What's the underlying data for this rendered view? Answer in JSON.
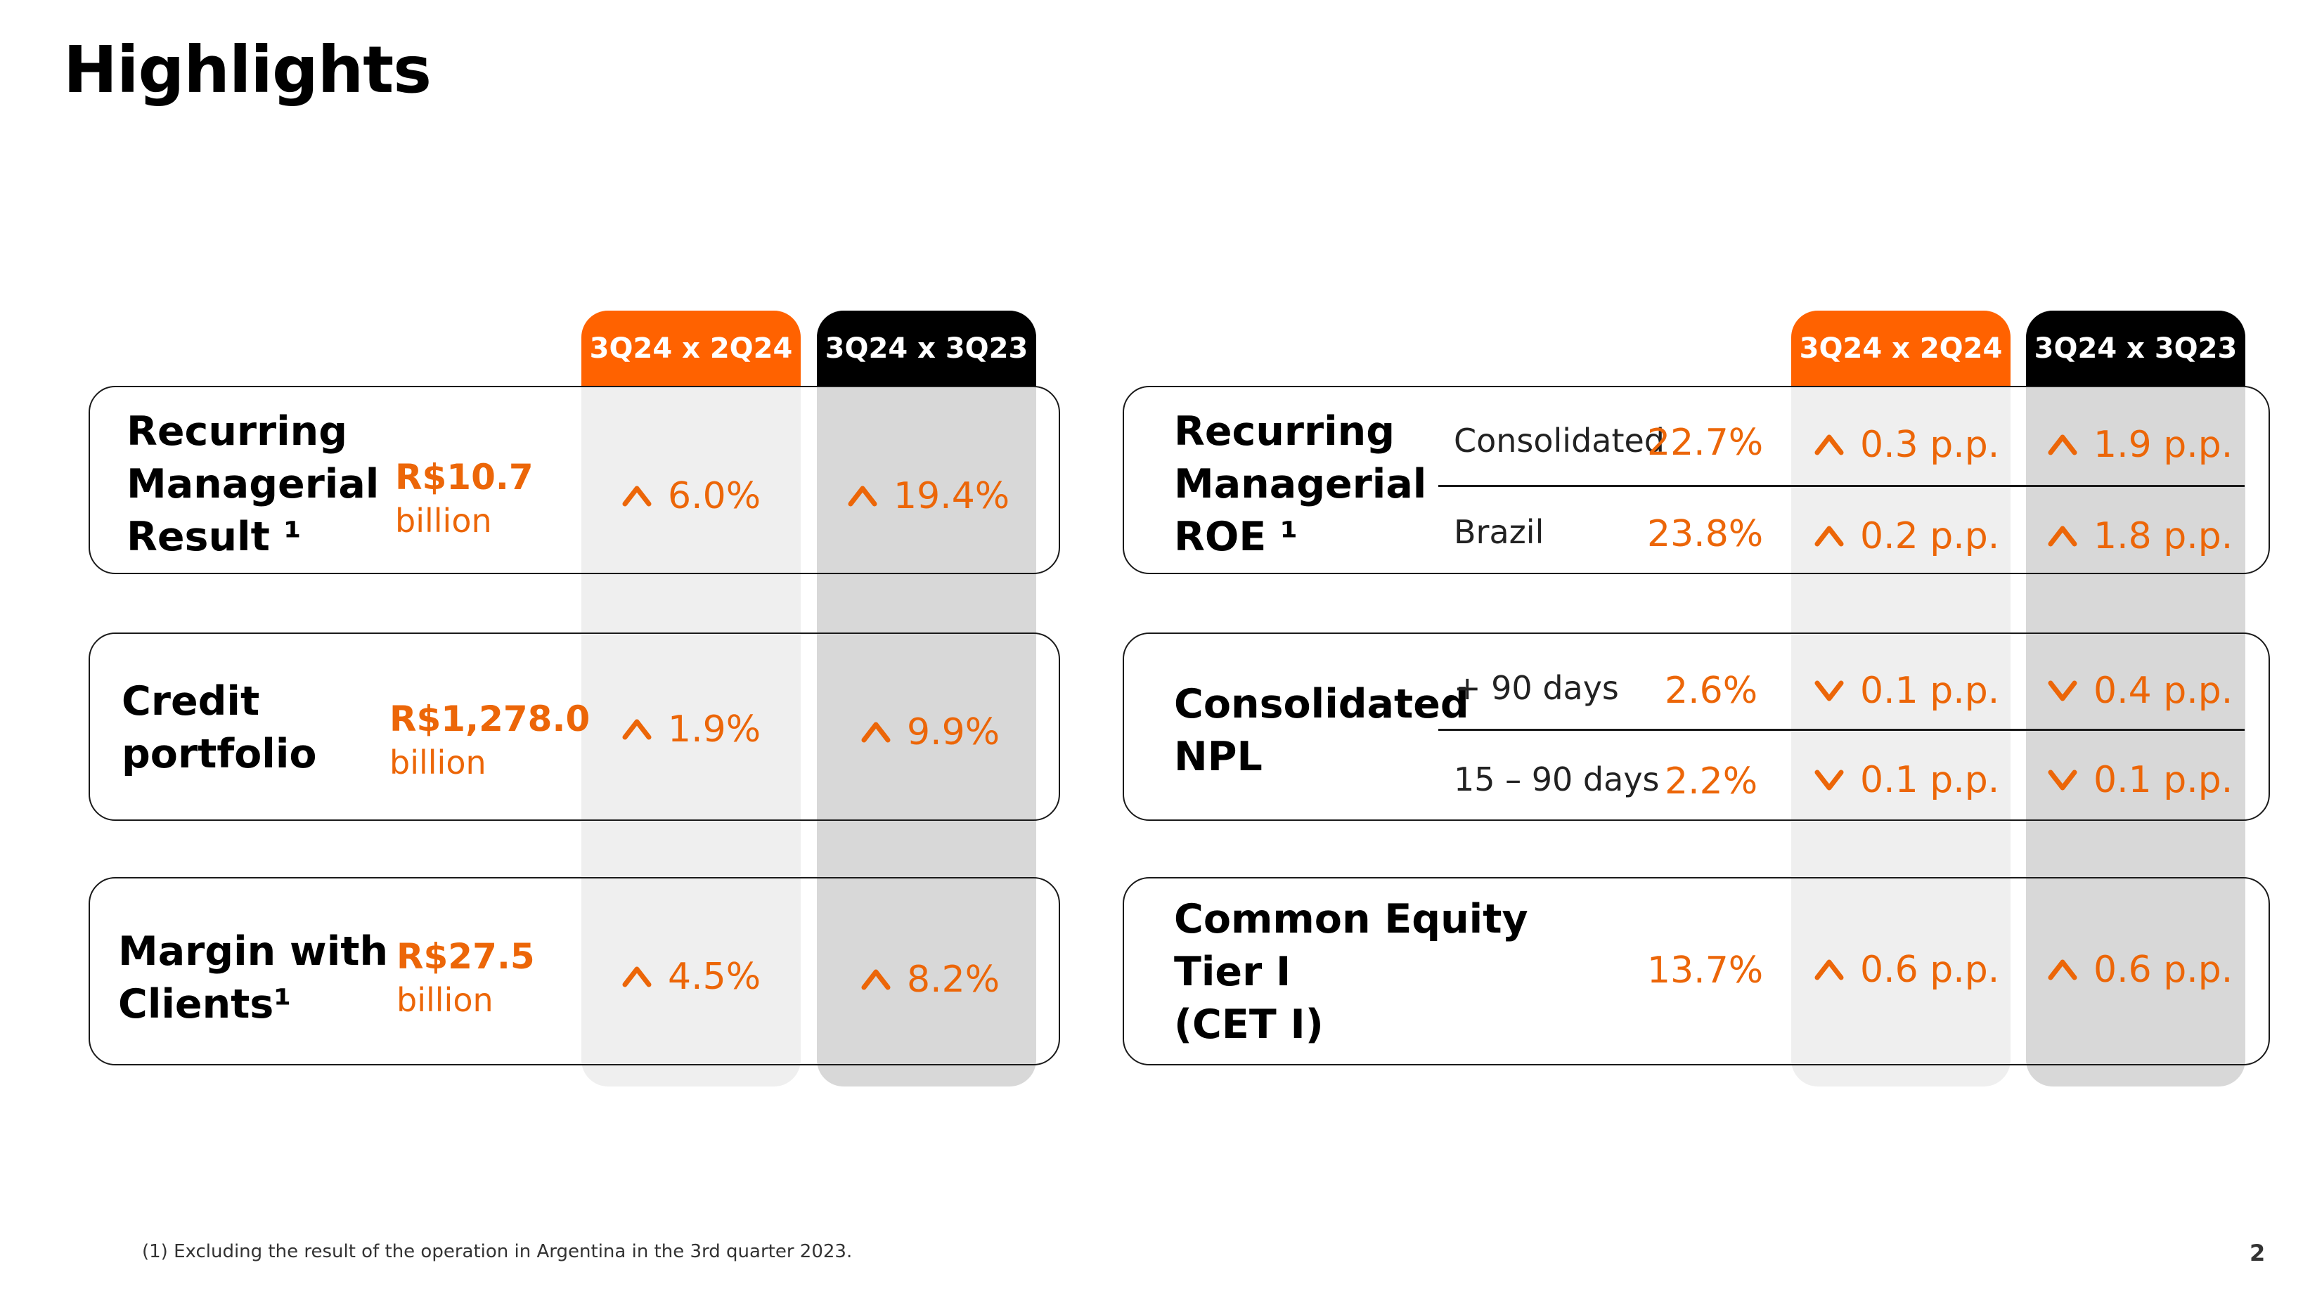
{
  "title": "Highlights",
  "headers": {
    "qoq": "3Q24 x 2Q24",
    "yoy": "3Q24 x 3Q23"
  },
  "left_rows": [
    {
      "label_lines": [
        "Recurring",
        "Managerial",
        "Result ¹"
      ],
      "amount": "R$10.7",
      "unit": "billion",
      "qoq": "6.0%",
      "qoq_dir": "up",
      "yoy": "19.4%",
      "yoy_dir": "up"
    },
    {
      "label_lines": [
        "Credit",
        "portfolio"
      ],
      "amount": "R$1,278.0",
      "unit": "billion",
      "qoq": "1.9%",
      "qoq_dir": "up",
      "yoy": "9.9%",
      "yoy_dir": "up"
    },
    {
      "label_lines": [
        "Margin with",
        "Clients¹"
      ],
      "amount": "R$27.5",
      "unit": "billion",
      "qoq": "4.5%",
      "qoq_dir": "up",
      "yoy": "8.2%",
      "yoy_dir": "up"
    }
  ],
  "roe": {
    "label_lines": [
      "Recurring",
      "Managerial",
      "ROE ¹"
    ],
    "rows": [
      {
        "name": "Consolidated",
        "value": "22.7%",
        "qoq": "0.3 p.p.",
        "qoq_dir": "up",
        "yoy": "1.9 p.p.",
        "yoy_dir": "up"
      },
      {
        "name": "Brazil",
        "value": "23.8%",
        "qoq": "0.2 p.p.",
        "qoq_dir": "up",
        "yoy": "1.8 p.p.",
        "yoy_dir": "up"
      }
    ]
  },
  "npl": {
    "label_lines": [
      "Consolidated",
      "NPL"
    ],
    "rows": [
      {
        "name": "+ 90 days",
        "value": "2.6%",
        "qoq": "0.1 p.p.",
        "qoq_dir": "down",
        "yoy": "0.4 p.p.",
        "yoy_dir": "down"
      },
      {
        "name": "15 – 90 days",
        "value": "2.2%",
        "qoq": "0.1 p.p.",
        "qoq_dir": "down",
        "yoy": "0.1 p.p.",
        "yoy_dir": "down"
      }
    ]
  },
  "cet": {
    "label_lines": [
      "Common Equity",
      "Tier I",
      "(CET I)"
    ],
    "value": "13.7%",
    "qoq": "0.6 p.p.",
    "qoq_dir": "up",
    "yoy": "0.6 p.p.",
    "yoy_dir": "up"
  },
  "footnote": "(1) Excluding the result of the operation in Argentina in the 3rd quarter 2023.",
  "page_number": "2",
  "colors": {
    "accent": "#ff6200",
    "value_orange": "#ec6608",
    "dark_header": "#000000",
    "col_light": "#efefef",
    "col_dark": "#d8d8d8"
  }
}
